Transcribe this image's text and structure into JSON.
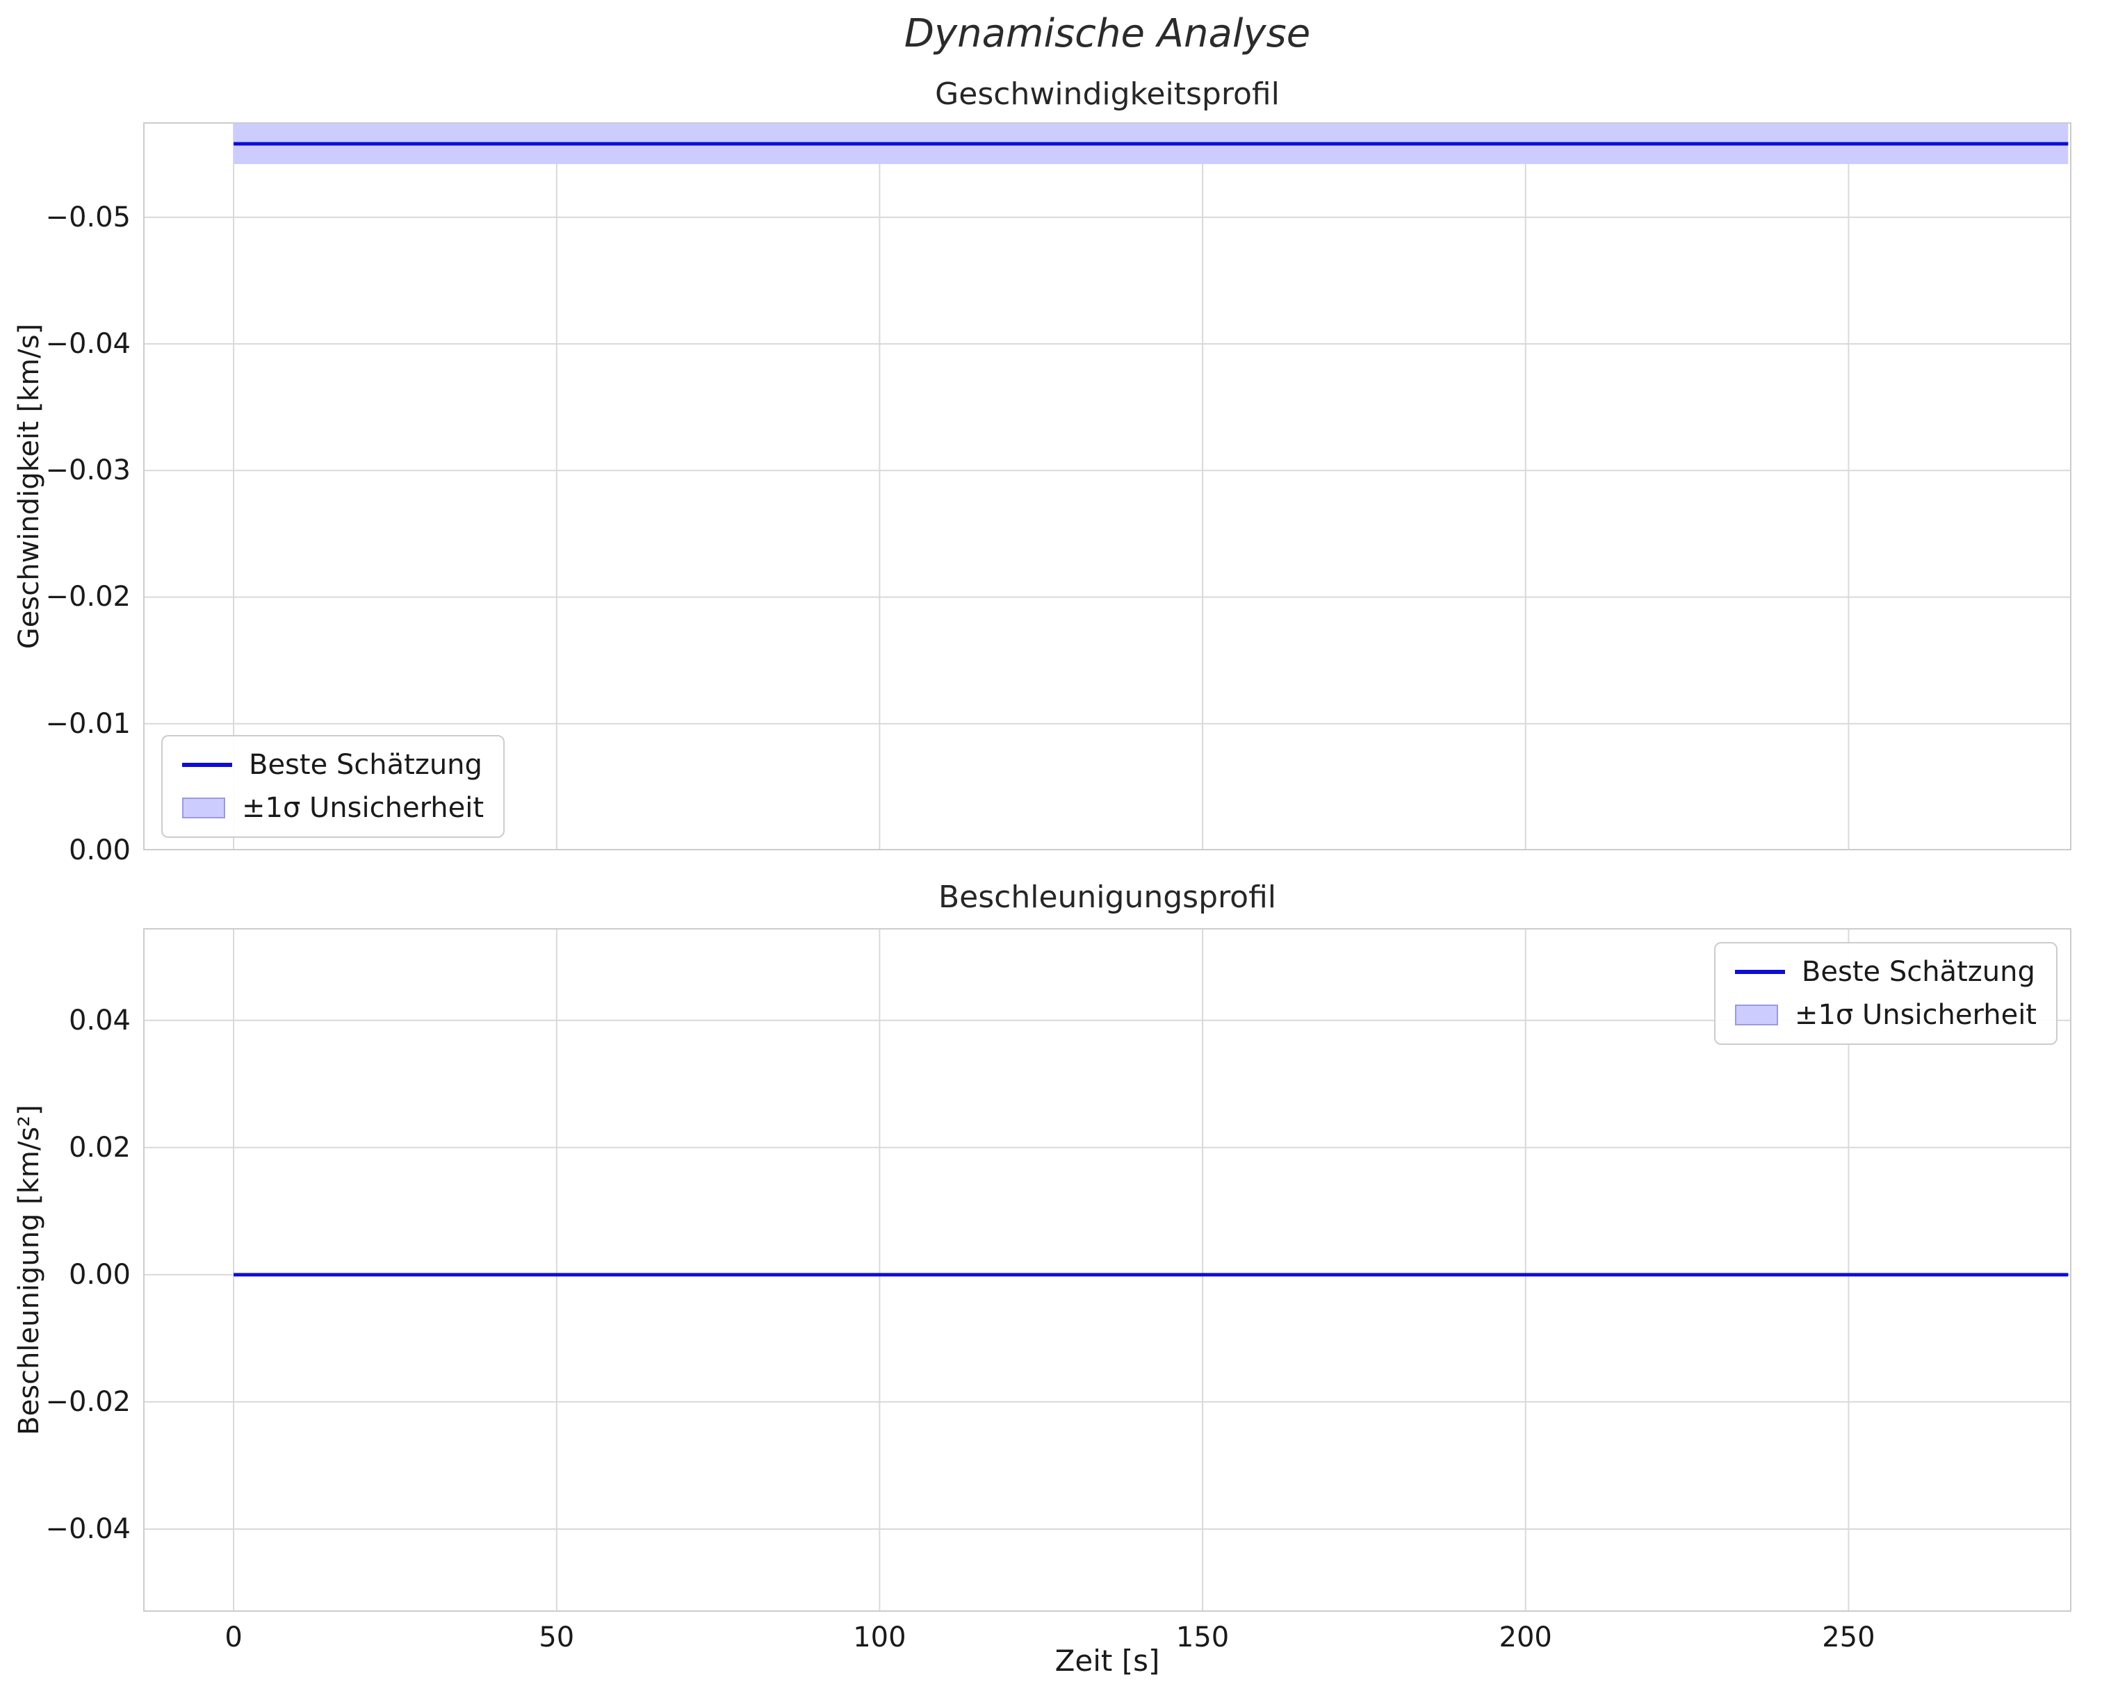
{
  "figure": {
    "title": "Dynamische Analyse"
  },
  "style": {
    "line_color": "#0d0dd6",
    "band_fill": "#ccccff",
    "band_edge": "#9a9ae0",
    "grid_color": "#d9d9d9",
    "spine_color": "#cccccc",
    "text_color": "#1a1a1a",
    "background": "#ffffff"
  },
  "chart_data": [
    {
      "type": "line",
      "title": "Geschwindigkeitsprofil",
      "ylabel": "Geschwindigkeit [km/s]",
      "xlabel": "",
      "y_axis_inverted": true,
      "xlim": [
        -14,
        284.5
      ],
      "ylim": [
        0.0,
        -0.0575
      ],
      "xticks": [
        0,
        50,
        100,
        150,
        200,
        250
      ],
      "xtick_labels": null,
      "yticks": [
        0.0,
        -0.01,
        -0.02,
        -0.03,
        -0.04,
        -0.05
      ],
      "ytick_labels": [
        "0.00",
        "−0.01",
        "−0.02",
        "−0.03",
        "−0.04",
        "−0.05"
      ],
      "grid": true,
      "series": [
        {
          "name": "Beste Schätzung",
          "shape": "constant",
          "value": -0.0558,
          "sigma": 0.0016,
          "x_start": 0,
          "x_end": 284
        }
      ],
      "legend": {
        "position": "lower-left",
        "entries": [
          {
            "label": "Beste Schätzung",
            "swatch": "line"
          },
          {
            "label": "±1σ Unsicherheit",
            "swatch": "patch"
          }
        ]
      }
    },
    {
      "type": "line",
      "title": "Beschleunigungsprofil",
      "ylabel": "Beschleunigung [km/s²]",
      "xlabel": "Zeit [s]",
      "y_axis_inverted": false,
      "xlim": [
        -14,
        284.5
      ],
      "ylim": [
        -0.053,
        0.0545
      ],
      "xticks": [
        0,
        50,
        100,
        150,
        200,
        250
      ],
      "xtick_labels": [
        "0",
        "50",
        "100",
        "150",
        "200",
        "250"
      ],
      "yticks": [
        0.04,
        0.02,
        0.0,
        -0.02,
        -0.04
      ],
      "ytick_labels": [
        "0.04",
        "0.02",
        "0.00",
        "−0.02",
        "−0.04"
      ],
      "grid": true,
      "series": [
        {
          "name": "Beste Schätzung",
          "shape": "constant",
          "value": 0.0,
          "sigma": 0.0,
          "x_start": 0,
          "x_end": 284
        }
      ],
      "legend": {
        "position": "upper-right",
        "entries": [
          {
            "label": "Beste Schätzung",
            "swatch": "line"
          },
          {
            "label": "±1σ Unsicherheit",
            "swatch": "patch"
          }
        ]
      }
    }
  ]
}
